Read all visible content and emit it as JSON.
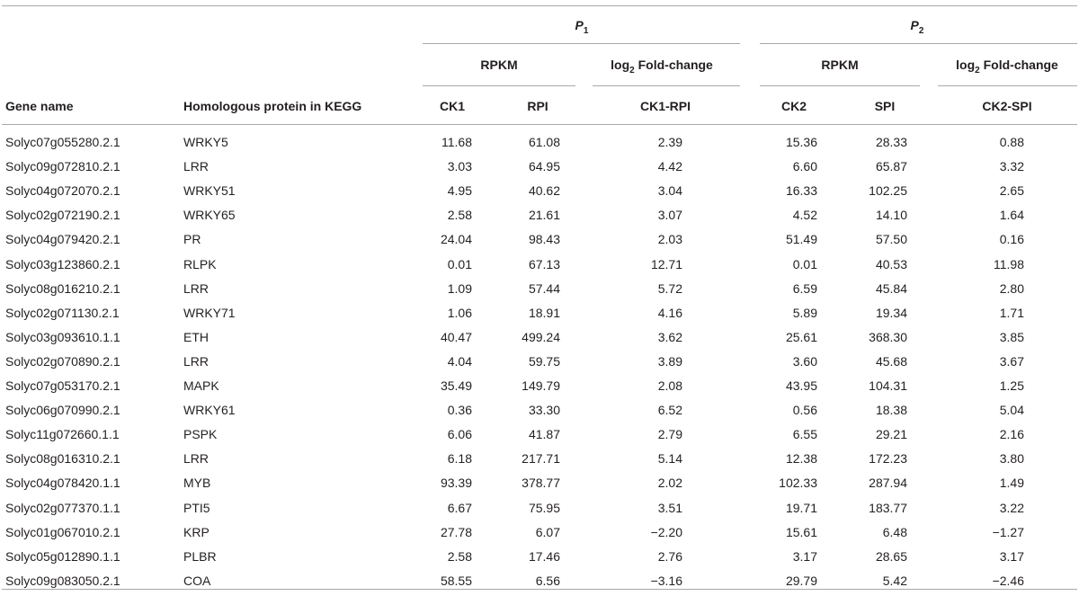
{
  "header": {
    "group_p1_letter": "P",
    "group_p1_sub": "1",
    "group_p2_letter": "P",
    "group_p2_sub": "2",
    "rpkm": "RPKM",
    "log_prefix": "log",
    "log_sub": "2",
    "log_suffix": " Fold-change",
    "gene_name": "Gene name",
    "homolog": "Homologous protein in KEGG",
    "ck1": "CK1",
    "rpi": "RPI",
    "ck1_rpi": "CK1-RPI",
    "ck2": "CK2",
    "spi": "SPI",
    "ck2_spi": "CK2-SPI"
  },
  "rows": [
    {
      "gene": "Solyc07g055280.2.1",
      "protein": "WRKY5",
      "ck1": "11.68",
      "rpi": "61.08",
      "fc1": "2.39",
      "ck2": "15.36",
      "spi": "28.33",
      "fc2": "0.88"
    },
    {
      "gene": "Solyc09g072810.2.1",
      "protein": "LRR",
      "ck1": "3.03",
      "rpi": "64.95",
      "fc1": "4.42",
      "ck2": "6.60",
      "spi": "65.87",
      "fc2": "3.32"
    },
    {
      "gene": "Solyc04g072070.2.1",
      "protein": "WRKY51",
      "ck1": "4.95",
      "rpi": "40.62",
      "fc1": "3.04",
      "ck2": "16.33",
      "spi": "102.25",
      "fc2": "2.65"
    },
    {
      "gene": "Solyc02g072190.2.1",
      "protein": "WRKY65",
      "ck1": "2.58",
      "rpi": "21.61",
      "fc1": "3.07",
      "ck2": "4.52",
      "spi": "14.10",
      "fc2": "1.64"
    },
    {
      "gene": "Solyc04g079420.2.1",
      "protein": "PR",
      "ck1": "24.04",
      "rpi": "98.43",
      "fc1": "2.03",
      "ck2": "51.49",
      "spi": "57.50",
      "fc2": "0.16"
    },
    {
      "gene": "Solyc03g123860.2.1",
      "protein": "RLPK",
      "ck1": "0.01",
      "rpi": "67.13",
      "fc1": "12.71",
      "ck2": "0.01",
      "spi": "40.53",
      "fc2": "11.98"
    },
    {
      "gene": "Solyc08g016210.2.1",
      "protein": "LRR",
      "ck1": "1.09",
      "rpi": "57.44",
      "fc1": "5.72",
      "ck2": "6.59",
      "spi": "45.84",
      "fc2": "2.80"
    },
    {
      "gene": "Solyc02g071130.2.1",
      "protein": "WRKY71",
      "ck1": "1.06",
      "rpi": "18.91",
      "fc1": "4.16",
      "ck2": "5.89",
      "spi": "19.34",
      "fc2": "1.71"
    },
    {
      "gene": "Solyc03g093610.1.1",
      "protein": "ETH",
      "ck1": "40.47",
      "rpi": "499.24",
      "fc1": "3.62",
      "ck2": "25.61",
      "spi": "368.30",
      "fc2": "3.85"
    },
    {
      "gene": "Solyc02g070890.2.1",
      "protein": "LRR",
      "ck1": "4.04",
      "rpi": "59.75",
      "fc1": "3.89",
      "ck2": "3.60",
      "spi": "45.68",
      "fc2": "3.67"
    },
    {
      "gene": "Solyc07g053170.2.1",
      "protein": "MAPK",
      "ck1": "35.49",
      "rpi": "149.79",
      "fc1": "2.08",
      "ck2": "43.95",
      "spi": "104.31",
      "fc2": "1.25"
    },
    {
      "gene": "Solyc06g070990.2.1",
      "protein": "WRKY61",
      "ck1": "0.36",
      "rpi": "33.30",
      "fc1": "6.52",
      "ck2": "0.56",
      "spi": "18.38",
      "fc2": "5.04"
    },
    {
      "gene": "Solyc11g072660.1.1",
      "protein": "PSPK",
      "ck1": "6.06",
      "rpi": "41.87",
      "fc1": "2.79",
      "ck2": "6.55",
      "spi": "29.21",
      "fc2": "2.16"
    },
    {
      "gene": "Solyc08g016310.2.1",
      "protein": "LRR",
      "ck1": "6.18",
      "rpi": "217.71",
      "fc1": "5.14",
      "ck2": "12.38",
      "spi": "172.23",
      "fc2": "3.80"
    },
    {
      "gene": "Solyc04g078420.1.1",
      "protein": "MYB",
      "ck1": "93.39",
      "rpi": "378.77",
      "fc1": "2.02",
      "ck2": "102.33",
      "spi": "287.94",
      "fc2": "1.49"
    },
    {
      "gene": "Solyc02g077370.1.1",
      "protein": "PTI5",
      "ck1": "6.67",
      "rpi": "75.95",
      "fc1": "3.51",
      "ck2": "19.71",
      "spi": "183.77",
      "fc2": "3.22"
    },
    {
      "gene": "Solyc01g067010.2.1",
      "protein": "KRP",
      "ck1": "27.78",
      "rpi": "6.07",
      "fc1": "−2.20",
      "ck2": "15.61",
      "spi": "6.48",
      "fc2": "−1.27"
    },
    {
      "gene": "Solyc05g012890.1.1",
      "protein": "PLBR",
      "ck1": "2.58",
      "rpi": "17.46",
      "fc1": "2.76",
      "ck2": "3.17",
      "spi": "28.65",
      "fc2": "3.17"
    },
    {
      "gene": "Solyc09g083050.2.1",
      "protein": "COA",
      "ck1": "58.55",
      "rpi": "6.56",
      "fc1": "−3.16",
      "ck2": "29.79",
      "spi": "5.42",
      "fc2": "−2.46"
    }
  ]
}
